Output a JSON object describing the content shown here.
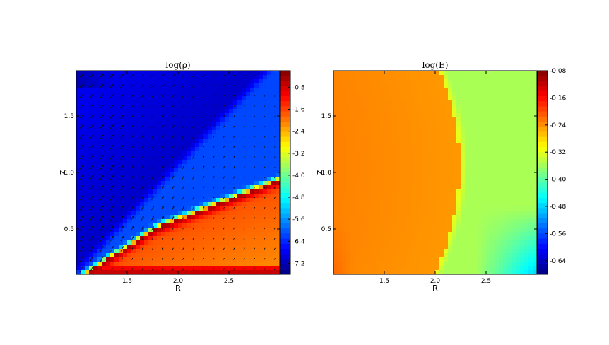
{
  "chart_data": [
    {
      "type": "heatmap",
      "title": "log(ρ)",
      "xlabel": "R",
      "ylabel": "z",
      "xlim": [
        1.0,
        3.0
      ],
      "ylim": [
        0.1,
        1.9
      ],
      "x_ticks": [
        "1.5",
        "2.0",
        "2.5"
      ],
      "y_ticks": [
        "0.5",
        "1.0",
        "1.5"
      ],
      "overlay": "velocity vector arrows",
      "colorbar": {
        "range": [
          -7.6,
          -0.2
        ],
        "ticks": [
          "-0.8",
          "-1.6",
          "-2.4",
          "-3.2",
          "-4.0",
          "-4.8",
          "-5.6",
          "-6.4",
          "-7.2"
        ],
        "colormap": "jet"
      }
    },
    {
      "type": "heatmap",
      "title": "log(E)",
      "xlabel": "R",
      "ylabel": "z",
      "xlim": [
        1.0,
        3.0
      ],
      "ylim": [
        0.1,
        1.9
      ],
      "x_ticks": [
        "1.5",
        "2.0",
        "2.5"
      ],
      "y_ticks": [
        "0.5",
        "1.0",
        "1.5"
      ],
      "colorbar": {
        "range": [
          -0.68,
          -0.08
        ],
        "ticks": [
          "-0.08",
          "-0.16",
          "-0.24",
          "-0.32",
          "-0.40",
          "-0.48",
          "-0.56",
          "-0.64"
        ],
        "colormap": "jet"
      }
    }
  ]
}
